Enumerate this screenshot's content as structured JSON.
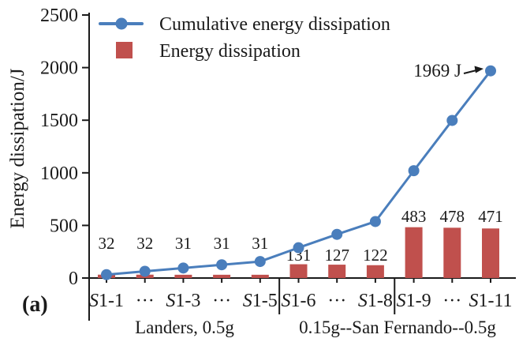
{
  "panel_label": "(a)",
  "chart_data": {
    "type": "bar+line combo",
    "title": "",
    "xlabel": "",
    "ylabel": "Energy dissipation/J",
    "ylim": [
      0,
      2500
    ],
    "yticks": [
      0,
      500,
      1000,
      1500,
      2000,
      2500
    ],
    "grid": false,
    "legend_position": "top-left",
    "categories": [
      "S1-1",
      "···",
      "S1-3",
      "···",
      "S1-5",
      "S1-6",
      "···",
      "S1-8",
      "S1-9",
      "···",
      "S1-11"
    ],
    "group_dividers_after_index": [
      4,
      7
    ],
    "group_labels": [
      "Landers, 0.5g",
      "0.15g--San Fernando--0.5g"
    ],
    "series": [
      {
        "name": "Cumulative energy dissipation",
        "type": "line",
        "color": "#4a7ebc",
        "values": [
          32,
          64,
          95,
          126,
          157,
          288,
          415,
          537,
          1020,
          1498,
          1969
        ]
      },
      {
        "name": "Energy dissipation",
        "type": "bar",
        "color": "#c0504d",
        "values": [
          32,
          32,
          31,
          31,
          31,
          131,
          127,
          122,
          483,
          478,
          471
        ]
      }
    ],
    "bar_value_labels": [
      "32",
      "32",
      "31",
      "31",
      "31",
      "131",
      "127",
      "122",
      "483",
      "478",
      "471"
    ],
    "annotation": "1969 J",
    "axis_color": "#1a1a1a"
  }
}
